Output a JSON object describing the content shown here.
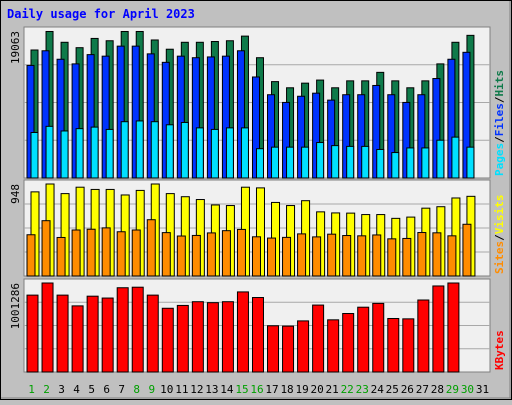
{
  "colors": {
    "background": "#c0c0c0",
    "panel": "#f0f0f0",
    "grid": "#a8a8a8",
    "title": "#0000ff",
    "label": "#000000",
    "hits": "#0f7a4a",
    "files": "#0033ff",
    "pages": "#00e0ff",
    "visits": "#ffff00",
    "sites": "#ff8c00",
    "kbytes": "#ff0000",
    "weekend_day": "#00a000",
    "weekday": "#000000"
  },
  "chart_data": {
    "type": "bar",
    "title": "Daily usage for April 2023",
    "categories": [
      "1",
      "2",
      "3",
      "4",
      "5",
      "6",
      "7",
      "8",
      "9",
      "10",
      "11",
      "12",
      "13",
      "14",
      "15",
      "16",
      "17",
      "18",
      "19",
      "20",
      "21",
      "22",
      "23",
      "24",
      "25",
      "26",
      "27",
      "28",
      "29",
      "30",
      "31"
    ],
    "weekend_days": [
      "1",
      "2",
      "8",
      "9",
      "15",
      "16",
      "22",
      "23",
      "29",
      "30"
    ],
    "panels": [
      {
        "name": "hits-files-pages",
        "ymax_label": "19063",
        "ymax": 19063,
        "grid": true,
        "legend": [
          {
            "label": "Pages",
            "color_key": "pages"
          },
          {
            "label": "Files",
            "color_key": "files"
          },
          {
            "label": "Hits",
            "color_key": "hits"
          }
        ],
        "series": [
          {
            "name": "Hits",
            "color_key": "hits",
            "values": [
              16600,
              19000,
              17600,
              16900,
              18100,
              17800,
              19000,
              19000,
              17900,
              16700,
              17600,
              17600,
              17700,
              17800,
              18400,
              15600,
              12500,
              11700,
              12300,
              12700,
              11700,
              12600,
              12600,
              13700,
              12600,
              11700,
              12600,
              14800,
              17600,
              18500
            ]
          },
          {
            "name": "Files",
            "color_key": "files",
            "values": [
              14600,
              16500,
              15400,
              14800,
              16000,
              15800,
              17100,
              17100,
              16100,
              15000,
              15800,
              15600,
              15700,
              15800,
              16500,
              13100,
              10800,
              9800,
              10600,
              11000,
              10100,
              10800,
              10800,
              12000,
              10800,
              9800,
              10800,
              12900,
              15400,
              16300
            ]
          },
          {
            "name": "Pages",
            "color_key": "pages",
            "values": [
              5900,
              6700,
              6100,
              6400,
              6600,
              6300,
              7300,
              7400,
              7300,
              6900,
              7200,
              6500,
              6300,
              6500,
              6500,
              3800,
              4000,
              4000,
              4000,
              4600,
              4200,
              4100,
              4100,
              3700,
              3300,
              3900,
              3900,
              4900,
              5300,
              4000
            ]
          }
        ]
      },
      {
        "name": "visits-sites",
        "ymax_label": "948",
        "ymax": 948,
        "grid": true,
        "legend": [
          {
            "label": "Sites",
            "color_key": "sites"
          },
          {
            "label": "Visits",
            "color_key": "visits"
          }
        ],
        "series": [
          {
            "name": "Visits",
            "color_key": "visits",
            "values": [
              867,
              948,
              849,
              915,
              892,
              892,
              835,
              882,
              948,
              849,
              817,
              788,
              732,
              726,
              915,
              908,
              758,
              726,
              776,
              661,
              650,
              648,
              633,
              633,
              594,
              607,
              699,
              714,
              804,
              821
            ]
          },
          {
            "name": "Sites",
            "color_key": "sites",
            "values": [
              425,
              570,
              397,
              474,
              482,
              496,
              456,
              474,
              580,
              447,
              412,
              418,
              444,
              467,
              480,
              404,
              391,
              398,
              434,
              403,
              431,
              417,
              414,
              423,
              383,
              387,
              448,
              445,
              414,
              533
            ]
          }
        ]
      },
      {
        "name": "kbytes",
        "ymax_label": "1001286",
        "ymax": 1001286,
        "grid": true,
        "legend": [
          {
            "label": "KBytes",
            "color_key": "kbytes"
          }
        ],
        "series": [
          {
            "name": "KBytes",
            "color_key": "kbytes",
            "values": [
              865000,
              1001286,
              865000,
              744000,
              853000,
              832000,
              948000,
              954000,
              865000,
              717000,
              749000,
              791000,
              780000,
              791000,
              901000,
              838000,
              520000,
              516000,
              575000,
              753000,
              587000,
              658000,
              729000,
              772000,
              602000,
              598000,
              810000,
              968000,
              1001286,
              0
            ]
          }
        ]
      }
    ]
  }
}
